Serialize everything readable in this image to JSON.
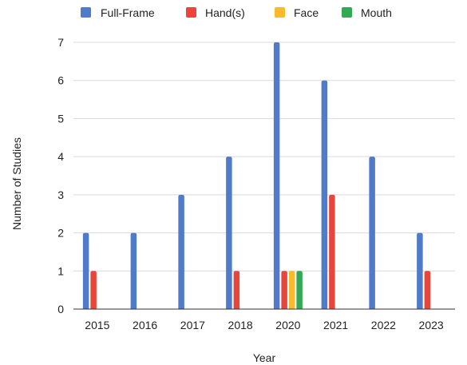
{
  "chart_data": {
    "type": "bar",
    "categories": [
      "2015",
      "2016",
      "2017",
      "2018",
      "2020",
      "2021",
      "2022",
      "2023"
    ],
    "series": [
      {
        "name": "Full-Frame",
        "color": "#4F7BC8",
        "values": [
          2,
          2,
          3,
          4,
          7,
          6,
          4,
          2
        ]
      },
      {
        "name": "Hand(s)",
        "color": "#E8453C",
        "values": [
          1,
          0,
          0,
          1,
          1,
          3,
          0,
          1
        ]
      },
      {
        "name": "Face",
        "color": "#F9BB2D",
        "values": [
          0,
          0,
          0,
          0,
          1,
          0,
          0,
          0
        ]
      },
      {
        "name": "Mouth",
        "color": "#34A853",
        "values": [
          0,
          0,
          0,
          0,
          1,
          0,
          0,
          0
        ]
      }
    ],
    "title": "",
    "xlabel": "Year",
    "ylabel": "Number of Studies",
    "ylim": [
      0,
      7
    ],
    "yticks": [
      "0",
      "1",
      "2",
      "3",
      "4",
      "5",
      "6",
      "7"
    ],
    "grid": true,
    "legend_position": "top"
  }
}
